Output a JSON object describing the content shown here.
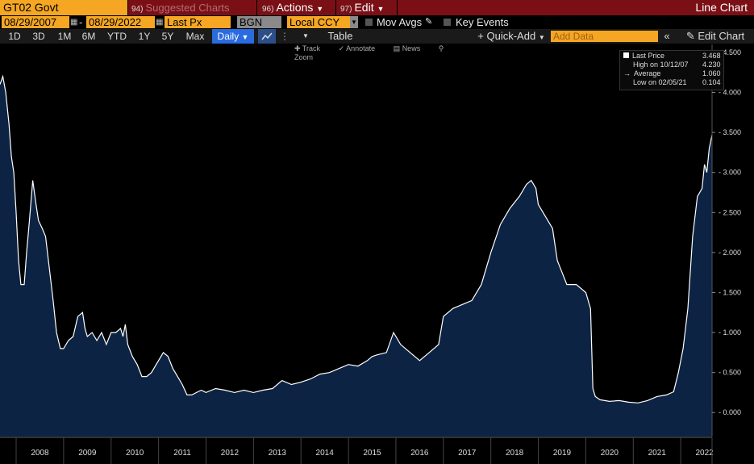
{
  "header": {
    "ticker": "GT02 Govt",
    "suggested_num": "94)",
    "suggested_label": "Suggested Charts",
    "actions_num": "96)",
    "actions_label": "Actions",
    "edit_num": "97)",
    "edit_label": "Edit",
    "chart_type_label": "Line Chart"
  },
  "controls": {
    "start_date": "08/29/2007",
    "end_date": "08/29/2022",
    "field": "Last Px",
    "source": "BGN",
    "currency": "Local CCY",
    "mov_avgs": "Mov Avgs",
    "key_events": "Key Events"
  },
  "periods": [
    "1D",
    "3D",
    "1M",
    "6M",
    "YTD",
    "1Y",
    "5Y",
    "Max"
  ],
  "frequency": "Daily",
  "table_label": "Table",
  "quick_add_label": "Quick-Add",
  "add_data_placeholder": "Add Data",
  "edit_chart_label": "Edit Chart",
  "subtoolbar": [
    "Track",
    "Annotate",
    "News",
    "Zoom"
  ],
  "colors": {
    "accent": "#f5a623",
    "header_bg": "#7a1016",
    "area_fill": "#0c2344",
    "line": "#ffffff"
  },
  "chart_data": {
    "type": "area",
    "title": "",
    "xlabel": "",
    "ylabel": "",
    "ylim": [
      -0.3,
      4.6
    ],
    "yticks": [
      "4.500",
      "4.000",
      "3.500",
      "3.000",
      "2.500",
      "2.000",
      "1.500",
      "1.000",
      "0.500",
      "0.000"
    ],
    "ytick_values": [
      4.5,
      4.0,
      3.5,
      3.0,
      2.5,
      2.0,
      1.5,
      1.0,
      0.5,
      0.0
    ],
    "xticks": [
      "2008",
      "2009",
      "2010",
      "2011",
      "2012",
      "2013",
      "2014",
      "2015",
      "2016",
      "2017",
      "2018",
      "2019",
      "2020",
      "2021",
      "2022"
    ],
    "x_start": 2007.66,
    "x_end": 2022.66,
    "grid": false,
    "legend": {
      "position": "top-right",
      "entries": [
        {
          "label": "Last Price",
          "value": "3.468"
        },
        {
          "label": "High on 10/12/07",
          "value": "4.230"
        },
        {
          "label": "Average",
          "value": "1.060"
        },
        {
          "label": "Low on 02/05/21",
          "value": "0.104"
        }
      ]
    },
    "series": [
      {
        "name": "Last Price",
        "x": [
          2007.66,
          2007.72,
          2007.78,
          2007.85,
          2007.9,
          2007.95,
          2008.0,
          2008.05,
          2008.1,
          2008.17,
          2008.22,
          2008.28,
          2008.35,
          2008.42,
          2008.47,
          2008.55,
          2008.62,
          2008.7,
          2008.78,
          2008.85,
          2008.93,
          2009.0,
          2009.1,
          2009.2,
          2009.3,
          2009.4,
          2009.45,
          2009.5,
          2009.6,
          2009.7,
          2009.8,
          2009.9,
          2010.0,
          2010.1,
          2010.2,
          2010.25,
          2010.3,
          2010.35,
          2010.45,
          2010.55,
          2010.65,
          2010.75,
          2010.85,
          2010.95,
          2011.0,
          2011.1,
          2011.2,
          2011.3,
          2011.4,
          2011.5,
          2011.6,
          2011.7,
          2011.8,
          2011.9,
          2012.0,
          2012.2,
          2012.4,
          2012.6,
          2012.8,
          2013.0,
          2013.2,
          2013.4,
          2013.6,
          2013.8,
          2014.0,
          2014.2,
          2014.4,
          2014.6,
          2014.8,
          2015.0,
          2015.2,
          2015.4,
          2015.5,
          2015.6,
          2015.8,
          2015.95,
          2016.1,
          2016.3,
          2016.5,
          2016.7,
          2016.9,
          2017.0,
          2017.2,
          2017.4,
          2017.6,
          2017.8,
          2018.0,
          2018.2,
          2018.4,
          2018.6,
          2018.75,
          2018.85,
          2018.95,
          2019.0,
          2019.1,
          2019.2,
          2019.3,
          2019.4,
          2019.5,
          2019.6,
          2019.7,
          2019.8,
          2019.9,
          2020.0,
          2020.1,
          2020.15,
          2020.2,
          2020.25,
          2020.3,
          2020.5,
          2020.7,
          2020.9,
          2021.1,
          2021.3,
          2021.5,
          2021.7,
          2021.85,
          2021.95,
          2022.05,
          2022.15,
          2022.25,
          2022.35,
          2022.45,
          2022.5,
          2022.55,
          2022.6,
          2022.66
        ],
        "values": [
          4.1,
          4.2,
          4.0,
          3.6,
          3.2,
          3.0,
          2.5,
          1.9,
          1.6,
          1.6,
          2.0,
          2.4,
          2.9,
          2.6,
          2.4,
          2.3,
          2.2,
          1.8,
          1.4,
          1.0,
          0.8,
          0.8,
          0.9,
          0.95,
          1.2,
          1.25,
          1.05,
          0.95,
          1.0,
          0.9,
          1.0,
          0.85,
          1.0,
          1.0,
          1.05,
          0.95,
          1.1,
          0.85,
          0.7,
          0.6,
          0.45,
          0.45,
          0.5,
          0.6,
          0.65,
          0.75,
          0.7,
          0.55,
          0.45,
          0.35,
          0.22,
          0.22,
          0.25,
          0.28,
          0.25,
          0.3,
          0.28,
          0.25,
          0.28,
          0.25,
          0.28,
          0.3,
          0.4,
          0.35,
          0.38,
          0.42,
          0.48,
          0.5,
          0.55,
          0.6,
          0.58,
          0.65,
          0.7,
          0.72,
          0.75,
          1.0,
          0.85,
          0.75,
          0.65,
          0.75,
          0.85,
          1.2,
          1.3,
          1.35,
          1.4,
          1.6,
          2.0,
          2.35,
          2.55,
          2.7,
          2.85,
          2.9,
          2.8,
          2.6,
          2.5,
          2.4,
          2.3,
          1.9,
          1.75,
          1.6,
          1.6,
          1.6,
          1.55,
          1.5,
          1.3,
          0.3,
          0.2,
          0.18,
          0.16,
          0.14,
          0.15,
          0.13,
          0.12,
          0.15,
          0.2,
          0.22,
          0.26,
          0.5,
          0.8,
          1.3,
          2.2,
          2.7,
          2.8,
          3.1,
          3.0,
          3.3,
          3.47
        ]
      }
    ]
  }
}
